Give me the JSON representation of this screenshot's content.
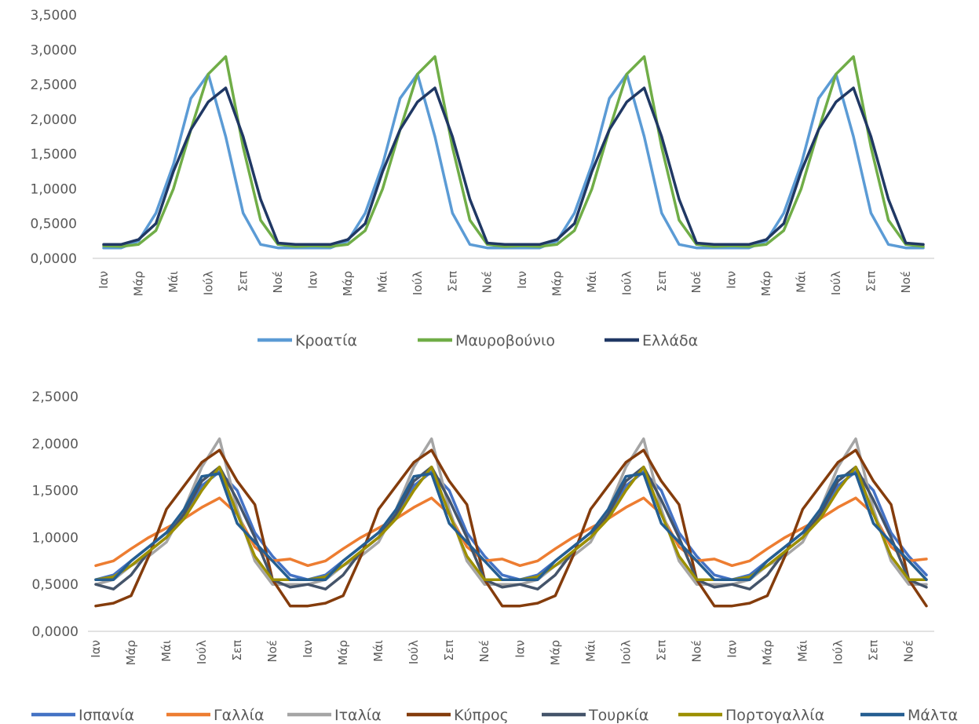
{
  "chart_data": [
    {
      "type": "line",
      "month_labels": [
        "Ιαν",
        "Μάρ",
        "Μάι",
        "Ιούλ",
        "Σεπ",
        "Νοέ"
      ],
      "x_tick_labels": [
        "Ιαν",
        "Μάρ",
        "Μάι",
        "Ιούλ",
        "Σεπ",
        "Νοέ",
        "Ιαν",
        "Μάρ",
        "Μάι",
        "Ιούλ",
        "Σεπ",
        "Νοέ",
        "Ιαν",
        "Μάρ",
        "Μάι",
        "Ιούλ",
        "Σεπ",
        "Νοέ",
        "Ιαν",
        "Μάρ",
        "Μάι",
        "Ιούλ",
        "Σεπ",
        "Νοέ"
      ],
      "y_tick_labels": [
        "0,0000",
        "0,5000",
        "1,0000",
        "1,5000",
        "2,0000",
        "2,5000",
        "3,0000",
        "3,5000"
      ],
      "ylim": [
        0,
        3.5
      ],
      "grid": false,
      "legend_position": "bottom",
      "periods": 4,
      "series": [
        {
          "name": "Κροατία",
          "color": "#5B9BD5",
          "values": [
            0.15,
            0.15,
            0.25,
            0.65,
            1.35,
            2.3,
            2.65,
            1.75,
            0.65,
            0.2,
            0.15,
            0.15
          ]
        },
        {
          "name": "Μαυροβούνιο",
          "color": "#70AD47",
          "values": [
            0.18,
            0.17,
            0.2,
            0.4,
            1.0,
            1.85,
            2.65,
            2.9,
            1.6,
            0.55,
            0.2,
            0.17
          ]
        },
        {
          "name": "Ελλάδα",
          "color": "#203864",
          "values": [
            0.2,
            0.2,
            0.27,
            0.5,
            1.25,
            1.85,
            2.25,
            2.45,
            1.75,
            0.85,
            0.22,
            0.2
          ]
        }
      ]
    },
    {
      "type": "line",
      "month_labels": [
        "Ιαν",
        "Μάρ",
        "Μάι",
        "Ιούλ",
        "Σεπ",
        "Νοέ"
      ],
      "x_tick_labels": [
        "Ιαν",
        "Μάρ",
        "Μάι",
        "Ιούλ",
        "Σεπ",
        "Νοέ",
        "Ιαν",
        "Μάρ",
        "Μάι",
        "Ιούλ",
        "Σεπ",
        "Νοέ",
        "Ιαν",
        "Μάρ",
        "Μάι",
        "Ιούλ",
        "Σεπ",
        "Νοέ",
        "Ιαν",
        "Μάρ",
        "Μάι",
        "Ιούλ",
        "Σεπ",
        "Νοέ"
      ],
      "y_tick_labels": [
        "0,0000",
        "0,5000",
        "1,0000",
        "1,5000",
        "2,0000",
        "2,5000"
      ],
      "ylim": [
        0,
        2.5
      ],
      "grid": false,
      "legend_position": "bottom",
      "periods": 4,
      "series": [
        {
          "name": "Ισπανία",
          "color": "#4472C4",
          "values": [
            0.55,
            0.6,
            0.75,
            0.9,
            1.05,
            1.25,
            1.55,
            1.7,
            1.5,
            1.05,
            0.8,
            0.6
          ]
        },
        {
          "name": "Γαλλία",
          "color": "#ED7D31",
          "values": [
            0.7,
            0.75,
            0.88,
            1.0,
            1.1,
            1.2,
            1.32,
            1.42,
            1.25,
            0.9,
            0.75,
            0.77
          ]
        },
        {
          "name": "Ιταλία",
          "color": "#A5A5A5",
          "values": [
            0.5,
            0.55,
            0.7,
            0.8,
            0.95,
            1.3,
            1.75,
            2.05,
            1.3,
            0.75,
            0.5,
            0.5
          ]
        },
        {
          "name": "Κύπρος",
          "color": "#843C0C",
          "values": [
            0.27,
            0.3,
            0.38,
            0.8,
            1.3,
            1.55,
            1.8,
            1.93,
            1.6,
            1.35,
            0.55,
            0.27
          ]
        },
        {
          "name": "Τουρκία",
          "color": "#44546A",
          "values": [
            0.5,
            0.45,
            0.6,
            0.85,
            1.0,
            1.25,
            1.6,
            1.75,
            1.4,
            1.0,
            0.55,
            0.47
          ]
        },
        {
          "name": "Πορτογαλλία",
          "color": "#9C8F00",
          "values": [
            0.55,
            0.58,
            0.7,
            0.85,
            1.0,
            1.2,
            1.5,
            1.75,
            1.25,
            0.8,
            0.55,
            0.55
          ]
        },
        {
          "name": "Μάλτα",
          "color": "#255E91",
          "values": [
            0.55,
            0.55,
            0.75,
            0.9,
            1.05,
            1.3,
            1.65,
            1.68,
            1.15,
            0.95,
            0.75,
            0.55
          ]
        }
      ]
    }
  ]
}
